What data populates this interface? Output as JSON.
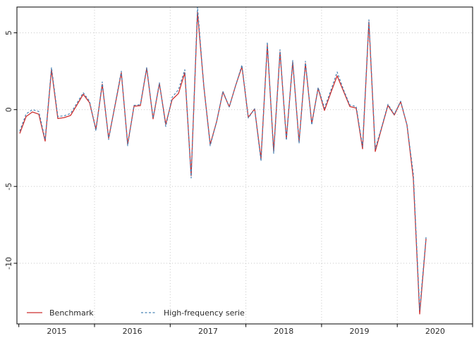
{
  "figure": {
    "background": "#ffffff",
    "border_color": "#000000",
    "grid_color": "#c8c8c8"
  },
  "chart_data": {
    "type": "line",
    "title": "",
    "xlabel": "",
    "ylabel": "",
    "x_unit": "monthly",
    "x_start": "2015-01",
    "x_end": "2020-05",
    "xlim_years": [
      2015,
      2021
    ],
    "ylim": [
      -13.8,
      6.8
    ],
    "y_ticks": [
      5,
      0,
      -5,
      -10
    ],
    "y_tick_labels": [
      "5",
      "0",
      "-5",
      "-10"
    ],
    "x_tick_labels": [
      "2015",
      "2016",
      "2017",
      "2018",
      "2019",
      "2020"
    ],
    "grid": "dotted, horizontal at y ticks and vertical at year boundaries",
    "legend_position": "bottom-left inside plot",
    "months": [
      "2015-01",
      "2015-02",
      "2015-03",
      "2015-04",
      "2015-05",
      "2015-06",
      "2015-07",
      "2015-08",
      "2015-09",
      "2015-10",
      "2015-11",
      "2015-12",
      "2016-01",
      "2016-02",
      "2016-03",
      "2016-04",
      "2016-05",
      "2016-06",
      "2016-07",
      "2016-08",
      "2016-09",
      "2016-10",
      "2016-11",
      "2016-12",
      "2017-01",
      "2017-02",
      "2017-03",
      "2017-04",
      "2017-05",
      "2017-06",
      "2017-07",
      "2017-08",
      "2017-09",
      "2017-10",
      "2017-11",
      "2017-12",
      "2018-01",
      "2018-02",
      "2018-03",
      "2018-04",
      "2018-05",
      "2018-06",
      "2018-07",
      "2018-08",
      "2018-09",
      "2018-10",
      "2018-11",
      "2018-12",
      "2019-01",
      "2019-02",
      "2019-03",
      "2019-04",
      "2019-05",
      "2019-06",
      "2019-07",
      "2019-08",
      "2019-09",
      "2019-10",
      "2019-11",
      "2019-12",
      "2020-01",
      "2020-02",
      "2020-03",
      "2020-04",
      "2020-05"
    ],
    "series": [
      {
        "name": "Benchmark",
        "color": "#cd2e2e",
        "style": "solid",
        "values": [
          -1.55,
          -0.45,
          -0.15,
          -0.3,
          -2.05,
          2.6,
          -0.58,
          -0.52,
          -0.38,
          0.3,
          1.0,
          0.45,
          -1.28,
          1.65,
          -1.85,
          0.25,
          2.4,
          -2.25,
          0.22,
          0.26,
          2.7,
          -0.6,
          1.7,
          -0.95,
          0.65,
          1.05,
          2.4,
          -4.3,
          6.35,
          1.5,
          -2.26,
          -0.8,
          1.15,
          0.18,
          1.56,
          2.8,
          -0.5,
          0.05,
          -3.2,
          4.2,
          -2.72,
          3.75,
          -1.9,
          3.1,
          -2.1,
          3.0,
          -0.9,
          1.4,
          -0.05,
          1.1,
          2.2,
          1.2,
          0.2,
          0.1,
          -2.55,
          5.7,
          -2.72,
          -1.2,
          0.28,
          -0.35,
          0.52,
          -1.0,
          -4.5,
          -13.3,
          -8.4
        ]
      },
      {
        "name": "High-frequency serie",
        "color": "#4682b4",
        "style": "dashed",
        "values": [
          -1.4,
          -0.28,
          0.0,
          -0.12,
          -1.95,
          2.75,
          -0.45,
          -0.4,
          -0.25,
          0.42,
          1.1,
          0.55,
          -1.38,
          1.8,
          -1.95,
          0.3,
          2.5,
          -2.35,
          0.28,
          0.32,
          2.76,
          -0.55,
          1.75,
          -1.1,
          0.8,
          1.3,
          2.6,
          -4.45,
          6.7,
          1.5,
          -2.35,
          -0.8,
          1.2,
          0.18,
          1.56,
          2.9,
          -0.55,
          0.05,
          -3.35,
          4.4,
          -2.85,
          3.9,
          -2.0,
          3.2,
          -2.2,
          3.15,
          -1.0,
          1.45,
          0.1,
          1.25,
          2.45,
          1.3,
          0.3,
          0.2,
          -2.4,
          5.85,
          -2.55,
          -1.15,
          0.35,
          -0.3,
          0.55,
          -1.0,
          -4.2,
          -13.05,
          -8.3
        ]
      }
    ]
  }
}
